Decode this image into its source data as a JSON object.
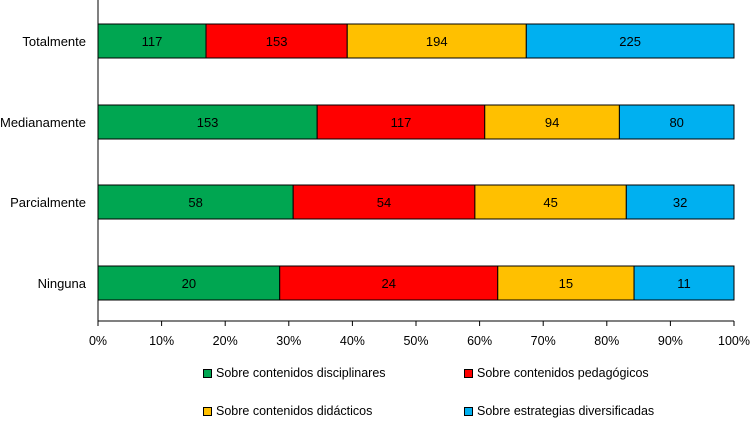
{
  "chart_data": {
    "type": "bar",
    "orientation": "horizontal",
    "stacked": "percent",
    "categories": [
      "Totalmente",
      "Medianamente",
      "Parcialmente",
      "Ninguna"
    ],
    "series": [
      {
        "name": "Sobre contenidos disciplinares",
        "color": "#00a651",
        "values": [
          117,
          153,
          58,
          20
        ]
      },
      {
        "name": "Sobre contenidos pedagógicos",
        "color": "#ff0000",
        "values": [
          153,
          117,
          54,
          24
        ]
      },
      {
        "name": "Sobre contenidos didácticos",
        "color": "#ffc000",
        "values": [
          194,
          94,
          45,
          15
        ]
      },
      {
        "name": "Sobre estrategias diversificadas",
        "color": "#00b0f0",
        "values": [
          225,
          80,
          32,
          11
        ]
      }
    ],
    "x_ticks": [
      "0%",
      "10%",
      "20%",
      "30%",
      "40%",
      "50%",
      "60%",
      "70%",
      "80%",
      "90%",
      "100%"
    ],
    "xlim": [
      0,
      100
    ],
    "legend_position": "bottom",
    "title": "",
    "xlabel": "",
    "ylabel": ""
  }
}
